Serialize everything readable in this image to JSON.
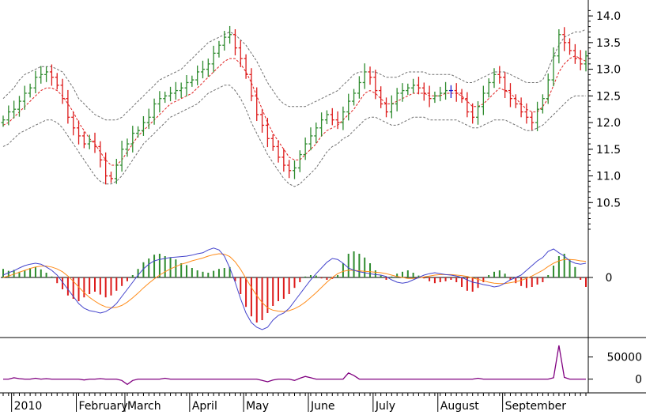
{
  "chart_data": [
    {
      "type": "ohlc",
      "panel": "price",
      "title": "",
      "ylim": [
        10.0,
        14.15
      ],
      "y_ticks": [
        "14.0",
        "13.5",
        "13.0",
        "12.5",
        "12.0",
        "11.5",
        "11.0",
        "10.5"
      ],
      "overlays": [
        "moving-average",
        "upper-envelope",
        "lower-envelope"
      ],
      "bar_colors": {
        "up": "#2e8b2e",
        "down": "#dd1a1a",
        "neutral": "#1a1ad0"
      },
      "overlay_colors": {
        "moving-average": "#e02020",
        "envelope": "#707070"
      },
      "series": [
        {
          "name": "close",
          "values": [
            12.05,
            12.2,
            12.25,
            12.4,
            12.55,
            12.65,
            12.85,
            12.9,
            12.95,
            12.85,
            12.7,
            12.45,
            12.1,
            11.9,
            11.75,
            11.6,
            11.65,
            11.55,
            11.3,
            11.0,
            10.95,
            11.2,
            11.5,
            11.6,
            11.8,
            11.85,
            12.0,
            12.1,
            12.35,
            12.45,
            12.5,
            12.55,
            12.6,
            12.65,
            12.75,
            12.8,
            12.95,
            13.0,
            13.1,
            13.3,
            13.45,
            13.6,
            13.65,
            13.4,
            13.2,
            12.9,
            12.5,
            12.15,
            11.95,
            11.7,
            11.55,
            11.35,
            11.2,
            11.1,
            11.15,
            11.4,
            11.6,
            11.75,
            11.9,
            12.05,
            12.15,
            12.05,
            12.0,
            12.2,
            12.4,
            12.55,
            12.75,
            12.95,
            12.85,
            12.6,
            12.35,
            12.2,
            12.35,
            12.55,
            12.6,
            12.65,
            12.7,
            12.65,
            12.55,
            12.45,
            12.5,
            12.55,
            12.6,
            12.6,
            12.55,
            12.45,
            12.2,
            12.1,
            12.3,
            12.55,
            12.75,
            12.9,
            12.85,
            12.6,
            12.45,
            12.35,
            12.2,
            12.1,
            12.0,
            12.25,
            12.45,
            12.8,
            13.25,
            13.65,
            13.5,
            13.35,
            13.2,
            13.1,
            13.25
          ]
        },
        {
          "name": "moving-average",
          "values": [
            11.95,
            12.0,
            12.1,
            12.2,
            12.3,
            12.4,
            12.5,
            12.6,
            12.65,
            12.65,
            12.6,
            12.5,
            12.35,
            12.2,
            12.0,
            11.85,
            11.7,
            11.6,
            11.45,
            11.3,
            11.2,
            11.2,
            11.3,
            11.45,
            11.6,
            11.75,
            11.85,
            11.95,
            12.05,
            12.15,
            12.25,
            12.35,
            12.4,
            12.45,
            12.5,
            12.55,
            12.65,
            12.75,
            12.85,
            12.95,
            13.05,
            13.15,
            13.2,
            13.2,
            13.1,
            12.95,
            12.75,
            12.5,
            12.25,
            12.0,
            11.8,
            11.65,
            11.5,
            11.35,
            11.3,
            11.3,
            11.4,
            11.5,
            11.6,
            11.75,
            11.85,
            11.9,
            11.95,
            12.05,
            12.15,
            12.25,
            12.4,
            12.55,
            12.6,
            12.55,
            12.45,
            12.35,
            12.35,
            12.4,
            12.45,
            12.5,
            12.55,
            12.55,
            12.55,
            12.5,
            12.5,
            12.5,
            12.55,
            12.55,
            12.55,
            12.5,
            12.4,
            12.3,
            12.3,
            12.35,
            12.45,
            12.55,
            12.65,
            12.6,
            12.55,
            12.45,
            12.35,
            12.25,
            12.2,
            12.2,
            12.3,
            12.45,
            12.7,
            12.95,
            13.1,
            13.2,
            13.25,
            13.2,
            13.15
          ]
        },
        {
          "name": "upper-envelope",
          "values": [
            12.45,
            12.55,
            12.65,
            12.8,
            12.9,
            12.95,
            13.0,
            13.05,
            13.05,
            13.05,
            13.0,
            12.95,
            12.8,
            12.65,
            12.45,
            12.35,
            12.25,
            12.15,
            12.1,
            12.05,
            12.05,
            12.05,
            12.1,
            12.2,
            12.3,
            12.4,
            12.5,
            12.6,
            12.7,
            12.8,
            12.85,
            12.9,
            12.95,
            13.0,
            13.1,
            13.2,
            13.3,
            13.4,
            13.5,
            13.55,
            13.6,
            13.65,
            13.7,
            13.65,
            13.55,
            13.45,
            13.3,
            13.15,
            12.95,
            12.75,
            12.6,
            12.45,
            12.35,
            12.3,
            12.3,
            12.3,
            12.3,
            12.35,
            12.4,
            12.45,
            12.5,
            12.55,
            12.6,
            12.7,
            12.8,
            12.9,
            12.95,
            12.95,
            12.95,
            12.95,
            12.9,
            12.85,
            12.85,
            12.85,
            12.9,
            12.95,
            12.95,
            12.95,
            12.95,
            12.9,
            12.9,
            12.9,
            12.9,
            12.9,
            12.85,
            12.8,
            12.75,
            12.75,
            12.8,
            12.85,
            12.9,
            12.95,
            12.95,
            12.95,
            12.9,
            12.85,
            12.8,
            12.75,
            12.75,
            12.75,
            12.8,
            13.0,
            13.25,
            13.45,
            13.6,
            13.65,
            13.7,
            13.7,
            13.75
          ]
        },
        {
          "name": "lower-envelope",
          "values": [
            11.55,
            11.6,
            11.7,
            11.8,
            11.85,
            11.9,
            11.95,
            12.0,
            12.05,
            12.05,
            12.0,
            11.9,
            11.75,
            11.6,
            11.45,
            11.3,
            11.15,
            11.0,
            10.9,
            10.85,
            10.85,
            10.9,
            11.0,
            11.15,
            11.3,
            11.45,
            11.6,
            11.7,
            11.8,
            11.9,
            12.0,
            12.1,
            12.15,
            12.2,
            12.25,
            12.3,
            12.35,
            12.45,
            12.55,
            12.6,
            12.65,
            12.7,
            12.7,
            12.6,
            12.45,
            12.25,
            12.0,
            11.8,
            11.6,
            11.4,
            11.25,
            11.1,
            10.95,
            10.85,
            10.8,
            10.85,
            10.95,
            11.05,
            11.15,
            11.3,
            11.45,
            11.55,
            11.6,
            11.7,
            11.75,
            11.85,
            11.95,
            12.05,
            12.1,
            12.1,
            12.05,
            12.0,
            11.95,
            11.95,
            12.0,
            12.05,
            12.1,
            12.1,
            12.1,
            12.05,
            12.05,
            12.05,
            12.05,
            12.05,
            12.05,
            12.0,
            11.95,
            11.9,
            11.9,
            11.95,
            12.0,
            12.05,
            12.05,
            12.05,
            12.0,
            11.95,
            11.9,
            11.85,
            11.85,
            11.9,
            11.95,
            12.05,
            12.15,
            12.25,
            12.35,
            12.45,
            12.5,
            12.5,
            12.5
          ]
        }
      ]
    },
    {
      "type": "bar",
      "panel": "oscillator",
      "title": "",
      "zero_label": "0",
      "series": [
        {
          "name": "histogram",
          "values": [
            0.18,
            0.14,
            0.16,
            0.12,
            0.15,
            0.2,
            0.22,
            0.17,
            0.1,
            0.02,
            -0.12,
            -0.25,
            -0.38,
            -0.45,
            -0.5,
            -0.42,
            -0.35,
            -0.3,
            -0.36,
            -0.42,
            -0.38,
            -0.28,
            -0.18,
            -0.08,
            0.05,
            0.18,
            0.32,
            0.4,
            0.48,
            0.5,
            0.45,
            0.42,
            0.38,
            0.3,
            0.26,
            0.2,
            0.15,
            0.12,
            0.1,
            0.14,
            0.18,
            0.2,
            0.22,
            -0.08,
            -0.35,
            -0.62,
            -0.82,
            -0.95,
            -0.9,
            -0.75,
            -0.6,
            -0.5,
            -0.45,
            -0.35,
            -0.22,
            -0.1,
            0.02,
            0.05,
            0.04,
            -0.02,
            -0.05,
            -0.03,
            0.05,
            0.3,
            0.5,
            0.55,
            0.5,
            0.42,
            0.3,
            0.15,
            0.04,
            -0.05,
            0.02,
            0.08,
            0.12,
            0.15,
            0.1,
            0.04,
            -0.02,
            -0.08,
            -0.12,
            -0.1,
            -0.08,
            -0.05,
            -0.1,
            -0.2,
            -0.28,
            -0.3,
            -0.22,
            -0.1,
            0.05,
            0.12,
            0.15,
            0.08,
            -0.05,
            -0.12,
            -0.18,
            -0.22,
            -0.2,
            -0.15,
            -0.1,
            0.05,
            0.25,
            0.45,
            0.5,
            0.38,
            0.22,
            -0.05,
            -0.2
          ]
        },
        {
          "name": "signal-fast",
          "values": [
            0.05,
            0.1,
            0.14,
            0.2,
            0.25,
            0.28,
            0.3,
            0.28,
            0.22,
            0.15,
            0.05,
            -0.1,
            -0.25,
            -0.4,
            -0.55,
            -0.65,
            -0.7,
            -0.72,
            -0.75,
            -0.72,
            -0.65,
            -0.55,
            -0.4,
            -0.25,
            -0.1,
            0.05,
            0.18,
            0.28,
            0.35,
            0.38,
            0.4,
            0.42,
            0.43,
            0.44,
            0.45,
            0.47,
            0.5,
            0.52,
            0.58,
            0.62,
            0.58,
            0.45,
            0.2,
            -0.1,
            -0.45,
            -0.75,
            -0.95,
            -1.05,
            -1.1,
            -1.05,
            -0.9,
            -0.8,
            -0.75,
            -0.65,
            -0.5,
            -0.35,
            -0.2,
            -0.05,
            0.08,
            0.2,
            0.32,
            0.4,
            0.38,
            0.3,
            0.2,
            0.15,
            0.12,
            0.1,
            0.08,
            0.06,
            0.05,
            0.02,
            -0.05,
            -0.1,
            -0.12,
            -0.1,
            -0.05,
            0.0,
            0.05,
            0.08,
            0.1,
            0.08,
            0.06,
            0.05,
            0.03,
            0.0,
            -0.05,
            -0.1,
            -0.12,
            -0.15,
            -0.17,
            -0.2,
            -0.18,
            -0.12,
            -0.05,
            0.0,
            0.05,
            0.15,
            0.25,
            0.35,
            0.42,
            0.55,
            0.6,
            0.52,
            0.45,
            0.35,
            0.3,
            0.28,
            0.3
          ]
        },
        {
          "name": "signal-slow",
          "values": [
            0.0,
            0.03,
            0.07,
            0.11,
            0.15,
            0.19,
            0.22,
            0.24,
            0.24,
            0.22,
            0.18,
            0.12,
            0.03,
            -0.08,
            -0.2,
            -0.32,
            -0.42,
            -0.5,
            -0.57,
            -0.62,
            -0.64,
            -0.63,
            -0.59,
            -0.52,
            -0.43,
            -0.33,
            -0.22,
            -0.12,
            -0.03,
            0.05,
            0.12,
            0.18,
            0.23,
            0.28,
            0.31,
            0.35,
            0.38,
            0.41,
            0.45,
            0.48,
            0.5,
            0.49,
            0.44,
            0.33,
            0.17,
            -0.02,
            -0.21,
            -0.38,
            -0.53,
            -0.64,
            -0.69,
            -0.71,
            -0.72,
            -0.7,
            -0.66,
            -0.6,
            -0.52,
            -0.42,
            -0.32,
            -0.21,
            -0.1,
            0.0,
            0.08,
            0.13,
            0.15,
            0.15,
            0.14,
            0.13,
            0.12,
            0.11,
            0.1,
            0.08,
            0.05,
            0.02,
            0.0,
            -0.02,
            -0.02,
            -0.01,
            0.01,
            0.03,
            0.05,
            0.06,
            0.06,
            0.06,
            0.05,
            0.04,
            0.02,
            -0.01,
            -0.04,
            -0.07,
            -0.1,
            -0.12,
            -0.13,
            -0.13,
            -0.11,
            -0.09,
            -0.06,
            -0.02,
            0.03,
            0.09,
            0.15,
            0.23,
            0.3,
            0.35,
            0.38,
            0.38,
            0.37,
            0.35,
            0.34
          ]
        }
      ],
      "colors": {
        "positive": "#2e8b2e",
        "negative": "#dd1a1a",
        "fast": "#4444cc",
        "slow": "#ff8c1a"
      }
    },
    {
      "type": "line",
      "panel": "volume-oscillator",
      "title": "",
      "y_ticks": [
        "50000",
        "0"
      ],
      "ylim": [
        -15000,
        85000
      ],
      "color": "#800080",
      "series": [
        {
          "name": "values",
          "values": [
            0,
            0,
            3000,
            1000,
            0,
            0,
            2000,
            0,
            1000,
            0,
            0,
            0,
            0,
            0,
            0,
            -2000,
            0,
            0,
            1000,
            0,
            0,
            0,
            -3000,
            -12000,
            -3000,
            0,
            0,
            0,
            0,
            0,
            2000,
            0,
            0,
            0,
            0,
            0,
            0,
            0,
            0,
            0,
            0,
            0,
            0,
            0,
            0,
            0,
            0,
            0,
            -3000,
            -6000,
            -2000,
            0,
            0,
            0,
            -3000,
            2000,
            6000,
            3000,
            0,
            0,
            0,
            0,
            0,
            0,
            14000,
            8000,
            0,
            0,
            0,
            0,
            0,
            0,
            0,
            0,
            0,
            0,
            0,
            0,
            0,
            0,
            0,
            0,
            0,
            0,
            0,
            0,
            0,
            0,
            2000,
            0,
            0,
            0,
            0,
            0,
            0,
            0,
            0,
            0,
            0,
            0,
            0,
            0,
            3000,
            76000,
            4000,
            0,
            0,
            0,
            0
          ]
        }
      ]
    }
  ],
  "x_axis": {
    "labels": [
      "2010",
      "February",
      "March",
      "April",
      "May",
      "June",
      "July",
      "August",
      "September"
    ]
  },
  "colors": {
    "background": "#ffffff",
    "axis": "#000000"
  }
}
